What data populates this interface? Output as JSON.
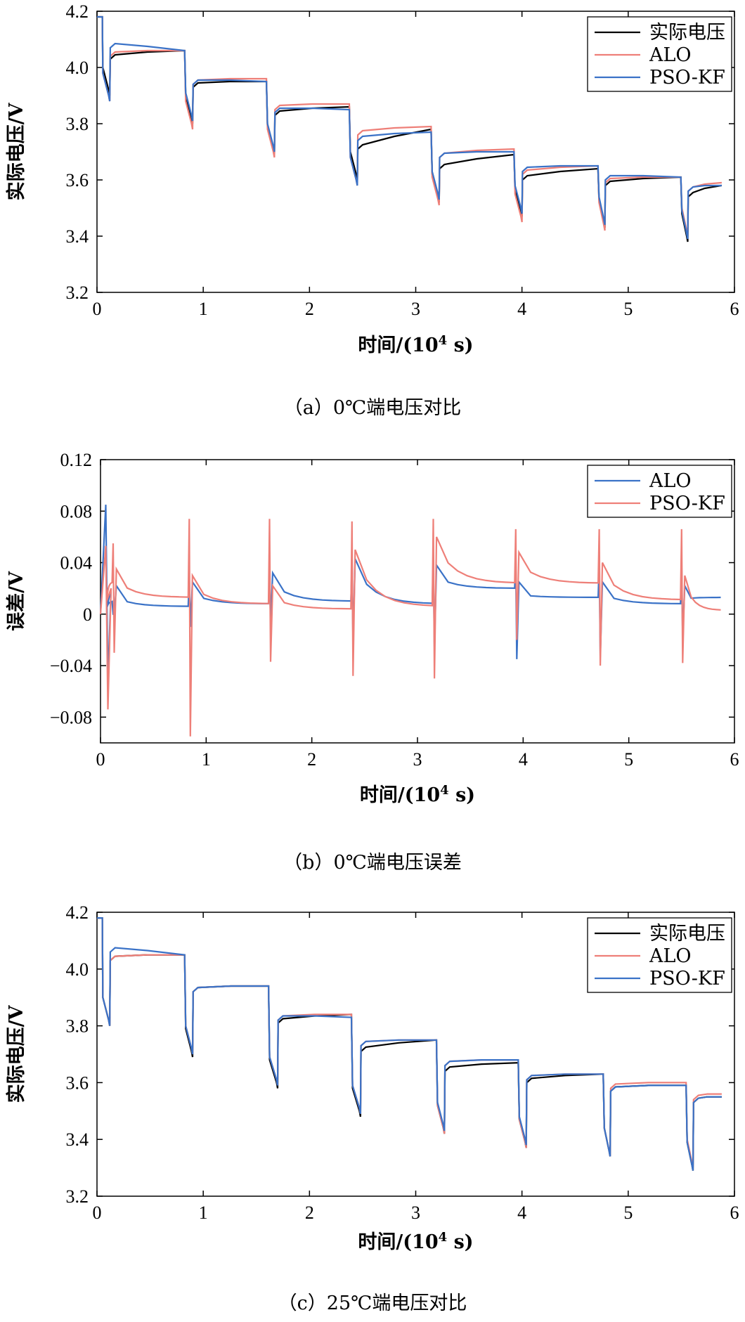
{
  "colors": {
    "actual": "#000000",
    "alo": "#ee7f78",
    "pso": "#3a72c7",
    "axis": "#000000"
  },
  "chart_data": [
    {
      "type": "line",
      "id": "a",
      "caption": "（a）0℃端电压对比",
      "xlabel": "时间/(10",
      "xlabel_exp": "4",
      "xlabel_tail": " s)",
      "ylabel": "实际电压/V",
      "xlim": [
        0,
        6
      ],
      "ylim": [
        3.2,
        4.2
      ],
      "xticks": [
        0,
        1,
        2,
        3,
        4,
        5,
        6
      ],
      "yticks": [
        3.2,
        3.4,
        3.6,
        3.8,
        4.0,
        4.2
      ],
      "ytick_labels": [
        "3.2",
        "3.4",
        "3.6",
        "3.8",
        "4.0",
        "4.2"
      ],
      "legend": [
        "实际电压",
        "ALO",
        "PSO-KF"
      ],
      "series": [
        {
          "name": "实际电压",
          "key": "actual",
          "start": 4.18,
          "end": 3.58,
          "pulses": [
            [
              0.05,
              0.12,
              4.05,
              4.06,
              3.9
            ],
            [
              0.83,
              0.9,
              3.95,
              3.95,
              3.8
            ],
            [
              1.6,
              1.67,
              3.85,
              3.86,
              3.69
            ],
            [
              2.38,
              2.45,
              3.73,
              3.78,
              3.6
            ],
            [
              3.15,
              3.22,
              3.66,
              3.69,
              3.52
            ],
            [
              3.93,
              4.0,
              3.62,
              3.64,
              3.47
            ],
            [
              4.72,
              4.78,
              3.6,
              3.61,
              3.43
            ],
            [
              5.5,
              5.56,
              3.56,
              3.58,
              3.38
            ]
          ]
        },
        {
          "name": "ALO",
          "key": "alo",
          "start": 4.18,
          "end": 3.59,
          "pulses": [
            [
              0.05,
              0.12,
              4.06,
              4.06,
              3.88
            ],
            [
              0.83,
              0.9,
              3.96,
              3.96,
              3.78
            ],
            [
              1.6,
              1.67,
              3.87,
              3.87,
              3.68
            ],
            [
              2.38,
              2.45,
              3.78,
              3.79,
              3.58
            ],
            [
              3.15,
              3.22,
              3.7,
              3.71,
              3.51
            ],
            [
              3.93,
              4.0,
              3.64,
              3.65,
              3.45
            ],
            [
              4.72,
              4.78,
              3.61,
              3.61,
              3.42
            ],
            [
              5.5,
              5.56,
              3.58,
              3.59,
              3.4
            ]
          ]
        },
        {
          "name": "PSO-KF",
          "key": "pso",
          "start": 4.18,
          "end": 3.58,
          "pulses": [
            [
              0.05,
              0.12,
              4.09,
              4.06,
              3.88
            ],
            [
              0.83,
              0.9,
              3.96,
              3.95,
              3.81
            ],
            [
              1.6,
              1.67,
              3.86,
              3.85,
              3.7
            ],
            [
              2.38,
              2.45,
              3.76,
              3.77,
              3.58
            ],
            [
              3.15,
              3.22,
              3.7,
              3.7,
              3.53
            ],
            [
              3.93,
              4.0,
              3.65,
              3.65,
              3.48
            ],
            [
              4.72,
              4.78,
              3.62,
              3.61,
              3.44
            ],
            [
              5.5,
              5.56,
              3.58,
              3.58,
              3.39
            ]
          ]
        }
      ]
    },
    {
      "type": "line",
      "id": "b",
      "caption": "（b）0℃端电压误差",
      "xlabel": "时间/(10",
      "xlabel_exp": "4",
      "xlabel_tail": " s)",
      "ylabel": "误差/V",
      "xlim": [
        0,
        6
      ],
      "ylim": [
        -0.1,
        0.12
      ],
      "xticks": [
        0,
        1,
        2,
        3,
        4,
        5,
        6
      ],
      "yticks": [
        -0.08,
        -0.04,
        0,
        0.04,
        0.08,
        0.12
      ],
      "ytick_labels": [
        "−0.08",
        "−0.04",
        "0",
        "0.04",
        "0.08",
        "0.12"
      ],
      "legend": [
        "ALO",
        "PSO-KF"
      ],
      "legend_colors": [
        "pso",
        "alo"
      ],
      "series": [
        {
          "name": "ALO",
          "key": "pso",
          "segments": [
            [
              0.0,
              0.12,
              0.0,
              0.01,
              0.085,
              -0.053
            ],
            [
              0.12,
              0.84,
              0.012,
              0.006,
              0,
              0
            ],
            [
              0.84,
              1.6,
              0.015,
              0.008,
              0.03,
              -0.01
            ],
            [
              1.6,
              2.38,
              0.022,
              0.01,
              0.028,
              -0.006
            ],
            [
              2.38,
              3.15,
              0.033,
              0.008,
              0.04,
              -0.022
            ],
            [
              3.15,
              3.93,
              0.028,
              0.02,
              0.042,
              -0.026
            ],
            [
              3.93,
              4.72,
              0.015,
              0.013,
              0.04,
              -0.035
            ],
            [
              4.72,
              5.5,
              0.015,
              0.008,
              0.04,
              -0.033
            ],
            [
              5.5,
              5.88,
              0.012,
              0.013,
              0.04,
              -0.018
            ]
          ]
        },
        {
          "name": "PSO-KF",
          "key": "alo",
          "segments": [
            [
              0.0,
              0.12,
              0.0,
              0.025,
              0.053,
              -0.074
            ],
            [
              0.12,
              0.84,
              0.025,
              0.013,
              0.055,
              -0.03
            ],
            [
              0.84,
              1.6,
              0.02,
              0.008,
              0.074,
              -0.095
            ],
            [
              1.6,
              2.38,
              0.012,
              0.004,
              0.074,
              -0.037
            ],
            [
              2.38,
              3.15,
              0.04,
              0.006,
              0.072,
              -0.048
            ],
            [
              3.15,
              3.93,
              0.05,
              0.024,
              0.074,
              -0.05
            ],
            [
              3.93,
              4.72,
              0.038,
              0.024,
              0.066,
              -0.02
            ],
            [
              4.72,
              5.5,
              0.03,
              0.011,
              0.066,
              -0.04
            ],
            [
              5.5,
              5.88,
              0.02,
              0.003,
              0.066,
              -0.038
            ]
          ]
        }
      ]
    },
    {
      "type": "line",
      "id": "c",
      "caption": "（c）25℃端电压对比",
      "xlabel": "时间/(10",
      "xlabel_exp": "4",
      "xlabel_tail": " s)",
      "ylabel": "实际电压/V",
      "xlim": [
        0,
        6
      ],
      "ylim": [
        3.2,
        4.2
      ],
      "xticks": [
        0,
        1,
        2,
        3,
        4,
        5,
        6
      ],
      "yticks": [
        3.2,
        3.4,
        3.6,
        3.8,
        4.0,
        4.2
      ],
      "ytick_labels": [
        "3.2",
        "3.4",
        "3.6",
        "3.8",
        "4.0",
        "4.2"
      ],
      "legend": [
        "实际电压",
        "ALO",
        "PSO-KF"
      ],
      "series": [
        {
          "name": "实际电压",
          "key": "actual",
          "start": 4.18,
          "end": 3.55,
          "pulses": [
            [
              0.05,
              0.12,
              4.05,
              4.05,
              3.8
            ],
            [
              0.83,
              0.9,
              3.94,
              3.94,
              3.69
            ],
            [
              1.62,
              1.7,
              3.83,
              3.84,
              3.58
            ],
            [
              2.4,
              2.48,
              3.73,
              3.75,
              3.48
            ],
            [
              3.2,
              3.27,
              3.66,
              3.67,
              3.42
            ],
            [
              3.97,
              4.04,
              3.62,
              3.63,
              3.37
            ],
            [
              4.77,
              4.83,
              3.59,
              3.59,
              3.34
            ],
            [
              5.55,
              5.61,
              3.55,
              3.55,
              3.29
            ]
          ]
        },
        {
          "name": "ALO",
          "key": "alo",
          "start": 4.18,
          "end": 3.56,
          "pulses": [
            [
              0.05,
              0.12,
              4.05,
              4.05,
              3.8
            ],
            [
              0.83,
              0.9,
              3.94,
              3.94,
              3.7
            ],
            [
              1.62,
              1.7,
              3.84,
              3.84,
              3.59
            ],
            [
              2.4,
              2.48,
              3.75,
              3.75,
              3.49
            ],
            [
              3.2,
              3.27,
              3.68,
              3.68,
              3.42
            ],
            [
              3.97,
              4.04,
              3.63,
              3.63,
              3.37
            ],
            [
              4.77,
              4.83,
              3.6,
              3.6,
              3.34
            ],
            [
              5.55,
              5.61,
              3.56,
              3.56,
              3.3
            ]
          ]
        },
        {
          "name": "PSO-KF",
          "key": "pso",
          "start": 4.18,
          "end": 3.55,
          "pulses": [
            [
              0.05,
              0.12,
              4.08,
              4.05,
              3.8
            ],
            [
              0.83,
              0.9,
              3.94,
              3.94,
              3.7
            ],
            [
              1.62,
              1.7,
              3.84,
              3.83,
              3.59
            ],
            [
              2.4,
              2.48,
              3.75,
              3.75,
              3.49
            ],
            [
              3.2,
              3.27,
              3.68,
              3.68,
              3.43
            ],
            [
              3.97,
              4.04,
              3.63,
              3.63,
              3.38
            ],
            [
              4.77,
              4.83,
              3.59,
              3.59,
              3.34
            ],
            [
              5.55,
              5.61,
              3.55,
              3.55,
              3.29
            ]
          ]
        }
      ]
    }
  ]
}
